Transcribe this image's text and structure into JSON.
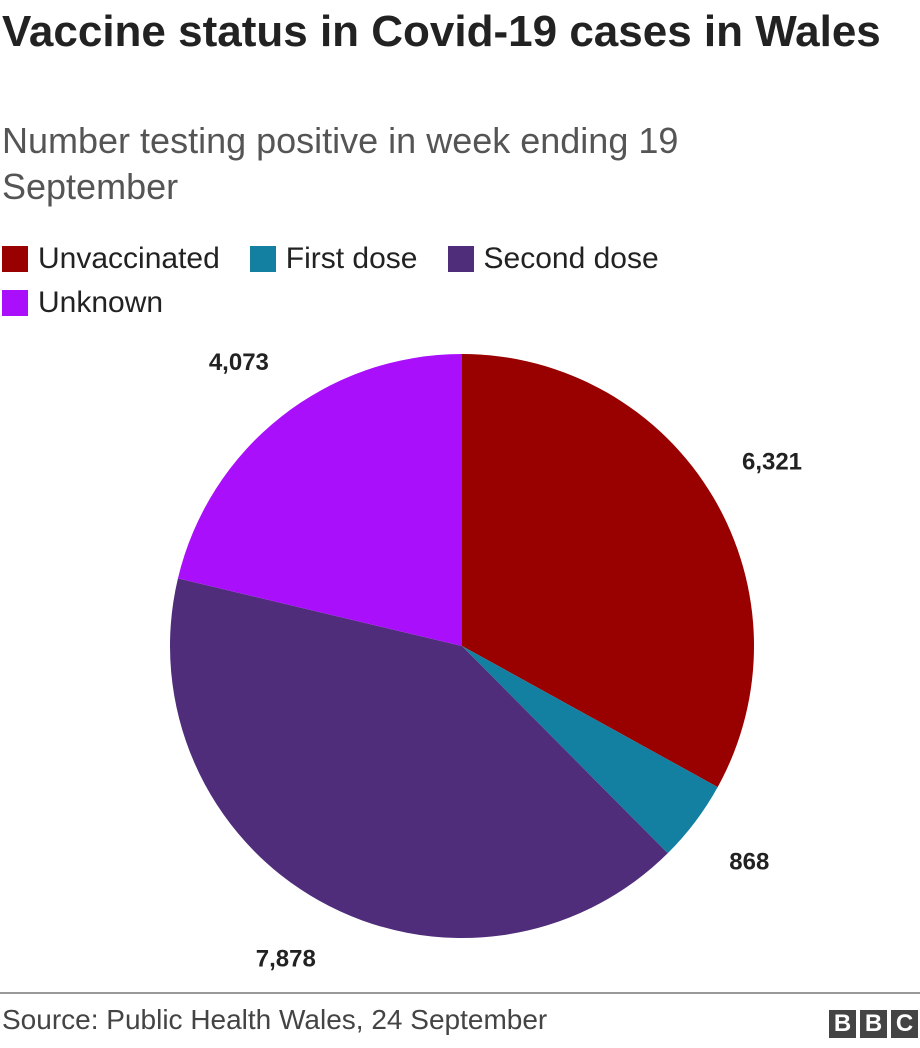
{
  "chart_data": {
    "type": "pie",
    "title": "Vaccine status in Covid-19 cases in Wales",
    "subtitle": "Number testing positive in week ending 19 September",
    "categories": [
      "Unvaccinated",
      "First dose",
      "Second dose",
      "Unknown"
    ],
    "values": [
      6321,
      868,
      7878,
      4073
    ],
    "value_labels": [
      "6,321",
      "868",
      "7,878",
      "4,073"
    ],
    "colors": [
      "#990000",
      "#1380a1",
      "#4f2d7a",
      "#a90ffa"
    ],
    "source": "Source: Public Health Wales, 24 September",
    "logo": [
      "B",
      "B",
      "C"
    ]
  }
}
